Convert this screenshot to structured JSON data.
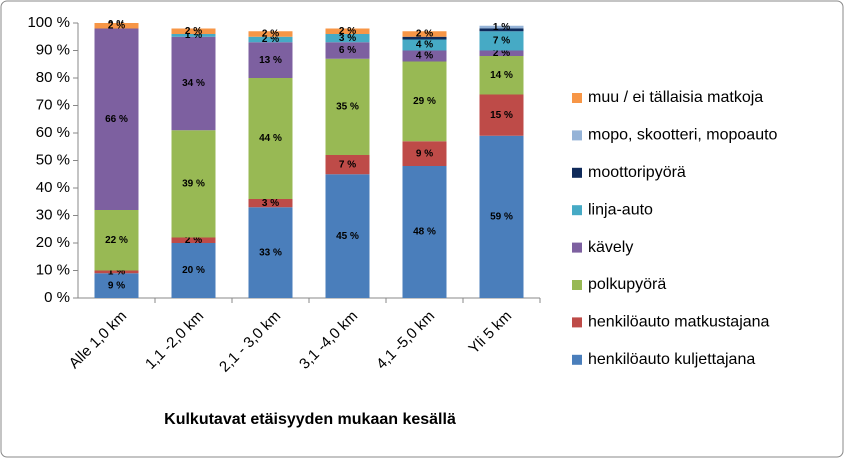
{
  "chart_data": {
    "type": "stacked_bar",
    "x_title": "Kulkutavat etäisyyden mukaan kesällä",
    "categories": [
      "Alle 1,0 km",
      "1,1 -2,0 km",
      "2,1 - 3,0 km",
      "3,1 -4,0 km",
      "4,1 -5,0 km",
      "Yli 5 km"
    ],
    "ylim": [
      0,
      100
    ],
    "yticks": [
      {
        "value": 0,
        "label": "0 %"
      },
      {
        "value": 10,
        "label": "10 %"
      },
      {
        "value": 20,
        "label": "20 %"
      },
      {
        "value": 30,
        "label": "30 %"
      },
      {
        "value": 40,
        "label": "40 %"
      },
      {
        "value": 50,
        "label": "50 %"
      },
      {
        "value": 60,
        "label": "60 %"
      },
      {
        "value": 70,
        "label": "70 %"
      },
      {
        "value": 80,
        "label": "80 %"
      },
      {
        "value": 90,
        "label": "90 %"
      },
      {
        "value": 100,
        "label": "100 %"
      }
    ],
    "legend": "right",
    "series": [
      {
        "name": "henkilöauto kuljettajana",
        "color": "#4a7ebb",
        "values": [
          9,
          20,
          33,
          45,
          48,
          59
        ],
        "value_labels": [
          "9 %",
          "20 %",
          "33 %",
          "45 %",
          "48 %",
          "59 %"
        ]
      },
      {
        "name": "henkilöauto matkustajana",
        "color": "#be4b48",
        "values": [
          1,
          2,
          3,
          7,
          9,
          15
        ],
        "value_labels": [
          "1 %",
          "2 %",
          "3 %",
          "7 %",
          "9 %",
          "15 %"
        ]
      },
      {
        "name": "polkupyörä",
        "color": "#98b954",
        "values": [
          22,
          39,
          44,
          35,
          29,
          14
        ],
        "value_labels": [
          "22 %",
          "39 %",
          "44 %",
          "35 %",
          "29 %",
          "14 %"
        ]
      },
      {
        "name": "kävely",
        "color": "#7d60a0",
        "values": [
          66,
          34,
          13,
          6,
          4,
          2
        ],
        "value_labels": [
          "66 %",
          "34 %",
          "13 %",
          "6 %",
          "4 %",
          "2 %"
        ]
      },
      {
        "name": "linja-auto",
        "color": "#46aac5",
        "values": [
          0,
          1,
          2,
          3,
          4,
          7
        ],
        "value_labels": [
          "0 %",
          "1 %",
          "2 %",
          "3 %",
          "4 %",
          "7 %"
        ]
      },
      {
        "name": "moottoripyörä",
        "color": "#0f2a5a",
        "values": [
          0,
          0,
          0,
          0,
          1,
          1
        ],
        "value_labels": [
          null,
          null,
          null,
          null,
          null,
          null
        ]
      },
      {
        "name": "mopo, skootteri, mopoauto",
        "color": "#95b3d7",
        "values": [
          0,
          0,
          0,
          0,
          0,
          1
        ],
        "value_labels": [
          null,
          null,
          null,
          null,
          null,
          "1 %"
        ]
      },
      {
        "name": "muu / ei tällaisia matkoja",
        "color": "#f79646",
        "values": [
          2,
          2,
          2,
          2,
          2,
          0
        ],
        "value_labels": [
          "2 %",
          "2 %",
          "2 %",
          "2 %",
          "2 %",
          null
        ]
      }
    ]
  }
}
